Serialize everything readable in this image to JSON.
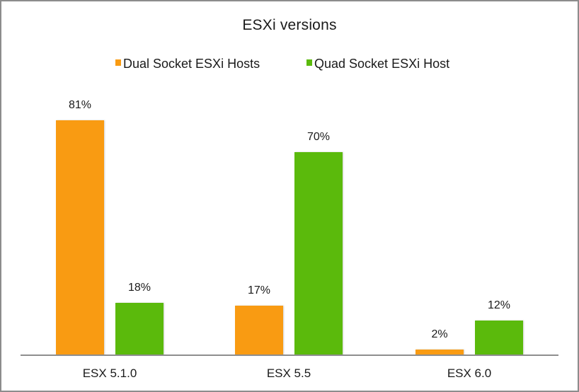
{
  "chart_data": {
    "type": "bar",
    "title": "ESXi versions",
    "categories": [
      "ESX 5.1.0",
      "ESX 5.5",
      "ESX 6.0"
    ],
    "series": [
      {
        "name": "Dual Socket ESXi Hosts",
        "color": "#F99B12",
        "values": [
          81,
          17,
          2
        ],
        "labels": [
          "81%",
          "17%",
          "2%"
        ]
      },
      {
        "name": "Quad Socket ESXi Host",
        "color": "#5BBA0C",
        "values": [
          18,
          70,
          12
        ],
        "labels": [
          "18%",
          "70%",
          "12%"
        ]
      }
    ],
    "xlabel": "",
    "ylabel": "",
    "unit": "%",
    "grid": false,
    "legend_position": "top",
    "data_labels": true
  },
  "ui": {
    "title": "ESXi versions",
    "legend": [
      {
        "label": "Dual Socket ESXi Hosts",
        "color": "#F99B12"
      },
      {
        "label": "Quad Socket ESXi Host",
        "color": "#5BBA0C"
      }
    ],
    "categories": [
      "ESX 5.1.0",
      "ESX 5.5",
      "ESX 6.0"
    ]
  }
}
